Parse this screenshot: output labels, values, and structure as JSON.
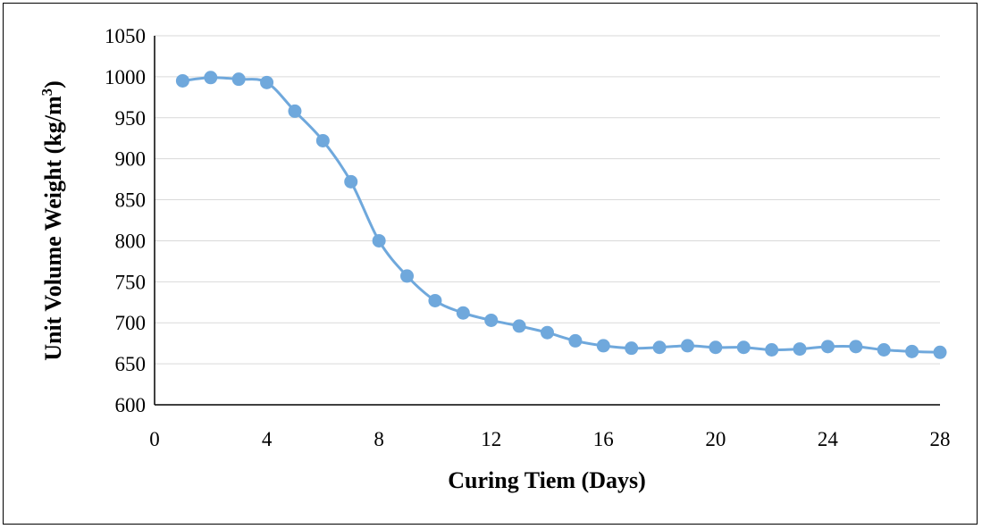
{
  "chart_data": {
    "type": "line",
    "title": "",
    "xlabel": "Curing Tiem (Days)",
    "ylabel_main": "Unit Volume Weight (kg/m",
    "ylabel_sup": "3",
    "ylabel_close": ")",
    "xlim": [
      0,
      28
    ],
    "ylim": [
      600,
      1050
    ],
    "x_ticks": [
      0,
      4,
      8,
      12,
      16,
      20,
      24,
      28
    ],
    "y_ticks": [
      600,
      650,
      700,
      750,
      800,
      850,
      900,
      950,
      1000,
      1050
    ],
    "grid": true,
    "smooth": true,
    "color": "#6fa8dc",
    "series": [
      {
        "x": [
          1,
          2,
          3,
          4,
          5,
          6,
          7,
          8,
          9,
          10,
          11,
          12,
          13,
          14,
          15,
          16,
          17,
          18,
          19,
          20,
          21,
          22,
          23,
          24,
          25,
          26,
          27,
          28
        ],
        "values": [
          995,
          999,
          997,
          993,
          958,
          922,
          872,
          800,
          757,
          727,
          712,
          703,
          696,
          688,
          678,
          672,
          669,
          670,
          672,
          670,
          670,
          667,
          668,
          671,
          671,
          667,
          665,
          664
        ]
      }
    ]
  }
}
